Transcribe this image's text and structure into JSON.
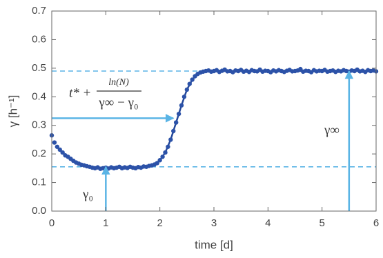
{
  "chart_data": {
    "type": "scatter",
    "xlabel": "time [d]",
    "ylabel": "γ [h⁻¹]",
    "xlim": [
      0,
      6
    ],
    "ylim": [
      0,
      0.7
    ],
    "xticks": [
      0,
      1,
      2,
      3,
      4,
      5,
      6
    ],
    "yticks": [
      {
        "value": 0,
        "label": "0.0"
      },
      0.1,
      0.2,
      0.3,
      0.4,
      0.5,
      0.6,
      0.7
    ],
    "points": {
      "color": "#2c52a8",
      "x": [
        0,
        0.05,
        0.1,
        0.15,
        0.2,
        0.25,
        0.3,
        0.35,
        0.4,
        0.45,
        0.5,
        0.55,
        0.6,
        0.65,
        0.7,
        0.75,
        0.8,
        0.85,
        0.9,
        0.95,
        1,
        1.05,
        1.1,
        1.15,
        1.2,
        1.25,
        1.3,
        1.35,
        1.4,
        1.45,
        1.5,
        1.55,
        1.6,
        1.65,
        1.7,
        1.75,
        1.8,
        1.85,
        1.9,
        1.95,
        2,
        2.05,
        2.1,
        2.15,
        2.2,
        2.25,
        2.3,
        2.35,
        2.4,
        2.45,
        2.5,
        2.55,
        2.6,
        2.65,
        2.7,
        2.75,
        2.8,
        2.85,
        2.9,
        2.95,
        3,
        3.05,
        3.1,
        3.15,
        3.2,
        3.25,
        3.3,
        3.35,
        3.4,
        3.45,
        3.5,
        3.55,
        3.6,
        3.65,
        3.7,
        3.75,
        3.8,
        3.85,
        3.9,
        3.95,
        4,
        4.05,
        4.1,
        4.15,
        4.2,
        4.25,
        4.3,
        4.35,
        4.4,
        4.45,
        4.5,
        4.55,
        4.6,
        4.65,
        4.7,
        4.75,
        4.8,
        4.85,
        4.9,
        4.95,
        5,
        5.05,
        5.1,
        5.15,
        5.2,
        5.25,
        5.3,
        5.35,
        5.4,
        5.45,
        5.5,
        5.55,
        5.6,
        5.65,
        5.7,
        5.75,
        5.8,
        5.85,
        5.9,
        5.95,
        6
      ],
      "y": [
        0.265,
        0.24,
        0.225,
        0.215,
        0.205,
        0.195,
        0.19,
        0.183,
        0.176,
        0.17,
        0.166,
        0.162,
        0.16,
        0.157,
        0.155,
        0.152,
        0.15,
        0.153,
        0.148,
        0.15,
        0.152,
        0.149,
        0.153,
        0.15,
        0.152,
        0.155,
        0.15,
        0.153,
        0.151,
        0.155,
        0.152,
        0.15,
        0.154,
        0.152,
        0.156,
        0.155,
        0.158,
        0.16,
        0.163,
        0.168,
        0.178,
        0.19,
        0.205,
        0.225,
        0.25,
        0.28,
        0.31,
        0.34,
        0.37,
        0.4,
        0.425,
        0.445,
        0.46,
        0.472,
        0.48,
        0.485,
        0.488,
        0.49,
        0.492,
        0.488,
        0.49,
        0.493,
        0.487,
        0.491,
        0.495,
        0.489,
        0.49,
        0.486,
        0.492,
        0.49,
        0.494,
        0.488,
        0.491,
        0.487,
        0.493,
        0.49,
        0.489,
        0.495,
        0.488,
        0.491,
        0.49,
        0.486,
        0.492,
        0.489,
        0.493,
        0.49,
        0.487,
        0.491,
        0.494,
        0.489,
        0.49,
        0.492,
        0.497,
        0.488,
        0.491,
        0.49,
        0.486,
        0.493,
        0.489,
        0.491,
        0.49,
        0.494,
        0.488,
        0.49,
        0.492,
        0.487,
        0.491,
        0.489,
        0.493,
        0.49,
        0.488,
        0.492,
        0.49,
        0.495,
        0.489,
        0.491,
        0.487,
        0.493,
        0.49,
        0.492,
        0.489
      ]
    },
    "fit": {
      "color": "#24489a",
      "x": [
        0.8,
        1,
        1.2,
        1.4,
        1.6,
        1.8,
        1.9,
        2,
        2.1,
        2.2,
        2.3,
        2.4,
        2.5,
        2.6,
        2.7,
        2.8,
        2.9,
        3,
        3.5,
        4,
        4.5,
        5,
        5.5,
        6
      ],
      "y": [
        0.152,
        0.152,
        0.152,
        0.152,
        0.153,
        0.157,
        0.163,
        0.177,
        0.205,
        0.25,
        0.31,
        0.37,
        0.425,
        0.46,
        0.48,
        0.488,
        0.49,
        0.49,
        0.49,
        0.49,
        0.49,
        0.49,
        0.49,
        0.49
      ]
    },
    "reference_lines": {
      "color": "#5ab4e5",
      "values": [
        0.49,
        0.155
      ]
    },
    "arrows": {
      "color": "#5ab4e5",
      "items": [
        {
          "x": [
            0,
            2.25
          ],
          "y": [
            0.325,
            0.325
          ]
        },
        {
          "x": [
            1,
            1
          ],
          "y": [
            0,
            0.155
          ]
        },
        {
          "x": [
            5.5,
            5.5
          ],
          "y": [
            0,
            0.49
          ]
        }
      ]
    },
    "annotations": {
      "gamma0": "γ₀",
      "gamma_inf": "γ∞",
      "formula_lead": "t* +",
      "formula_num": "ln(N)",
      "formula_den": "γ∞ − γ₀"
    }
  }
}
